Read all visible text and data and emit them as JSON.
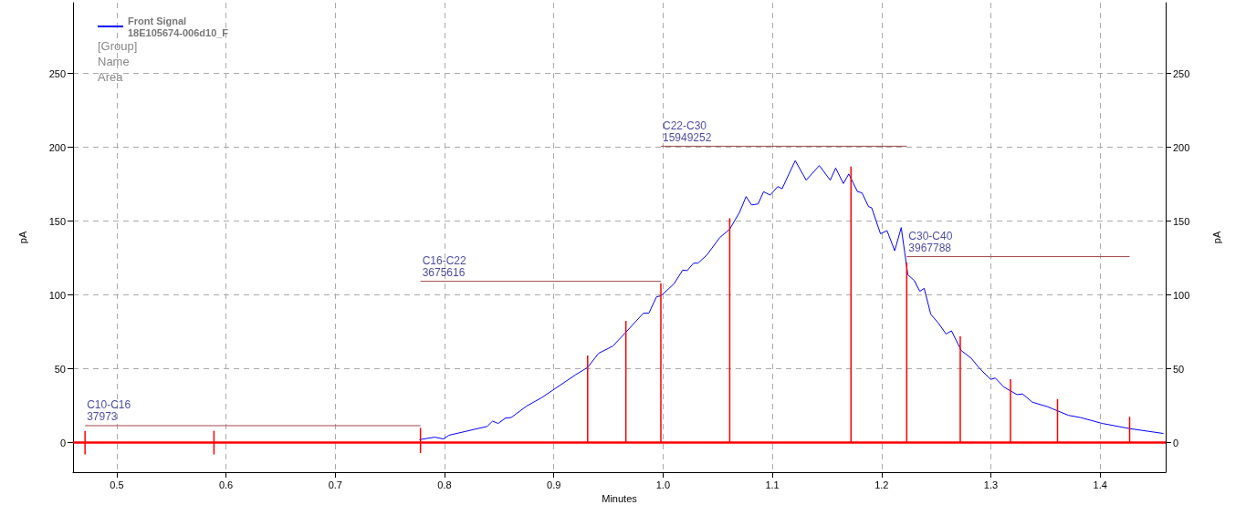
{
  "chart_data": {
    "type": "line",
    "xlabel": "Minutes",
    "ylabel": "pA",
    "y2label": "pA",
    "xlim": [
      0.46,
      1.46
    ],
    "xticks": [
      0.5,
      0.6,
      0.7,
      0.8,
      0.9,
      {
        "value": 1,
        "label": "1.0"
      },
      1.1,
      1.2,
      1.3,
      1.4
    ],
    "ylim": [
      -20,
      298
    ],
    "yticks": [
      0,
      50,
      100,
      150,
      200,
      250
    ],
    "y2lim": [
      -20,
      298
    ],
    "y2ticks": [
      0,
      50,
      100,
      150,
      200,
      250
    ],
    "grid": true,
    "legend": "top left",
    "marker": "none",
    "series": [
      {
        "name": "Front Signal\n18E105674-006d10_F",
        "color": "#0000ff",
        "x": [
          0.777,
          0.791,
          0.799,
          0.804,
          0.839,
          0.844,
          0.849,
          0.856,
          0.861,
          0.875,
          0.889,
          0.902,
          0.912,
          0.92,
          0.931,
          0.941,
          0.954,
          0.965,
          0.982,
          0.987,
          0.994,
          0.998,
          1.01,
          1.018,
          1.022,
          1.028,
          1.032,
          1.04,
          1.052,
          1.061,
          1.07,
          1.076,
          1.081,
          1.087,
          1.092,
          1.098,
          1.105,
          1.109,
          1.115,
          1.121,
          1.131,
          1.143,
          1.153,
          1.158,
          1.165,
          1.17,
          1.178,
          1.182,
          1.188,
          1.191,
          1.199,
          1.205,
          1.212,
          1.218,
          1.224,
          1.23,
          1.235,
          1.239,
          1.245,
          1.252,
          1.259,
          1.264,
          1.273,
          1.282,
          1.29,
          1.3,
          1.304,
          1.312,
          1.324,
          1.329,
          1.338,
          1.352,
          1.371,
          1.382,
          1.402,
          1.427,
          1.458
        ],
        "values": [
          2,
          3.7,
          2.5,
          5,
          11,
          14.6,
          13,
          16.7,
          17,
          24.7,
          30.5,
          37,
          42,
          46,
          51,
          60.5,
          65.4,
          74,
          87.7,
          87.7,
          98.8,
          99.4,
          107.6,
          116.9,
          116.5,
          121.6,
          121.6,
          127,
          139,
          144.6,
          156,
          166.7,
          161,
          161.7,
          170,
          167.7,
          173.5,
          172,
          181.7,
          191,
          177.8,
          187.7,
          177.8,
          186,
          175.5,
          182,
          170,
          169.3,
          160,
          159,
          141.5,
          143.6,
          130,
          145.7,
          113.8,
          109.7,
          102.5,
          104.5,
          87,
          80.9,
          73.6,
          75.7,
          62.3,
          57.2,
          50,
          42.8,
          43.8,
          37.6,
          32.5,
          33,
          27.4,
          24.3,
          18.5,
          17,
          13,
          9.5,
          6.2
        ]
      },
      {
        "type": "bar",
        "color": "#ff0000",
        "x": [
          0.471,
          0.589,
          0.778,
          0.931,
          0.966,
          0.998,
          1.061,
          1.172,
          1.223,
          1.272,
          1.318,
          1.361,
          1.427
        ],
        "base": [
          -8,
          -8,
          -7,
          0,
          0,
          0,
          0,
          0,
          0,
          0,
          0,
          0,
          0
        ],
        "values": [
          16,
          16,
          17,
          59,
          82.5,
          108,
          152,
          187,
          122,
          72,
          43,
          29.5,
          17.5
        ]
      },
      {
        "color": "#a04848",
        "x": [
          0.471,
          0.778
        ],
        "values": [
          11.5,
          11.5
        ]
      },
      {
        "color": "#a04848",
        "x": [
          0.778,
          0.998
        ],
        "values": [
          109.3,
          109.3
        ]
      },
      {
        "color": "#a04848",
        "x": [
          0.998,
          1.223
        ],
        "values": [
          200.8,
          200.8
        ]
      },
      {
        "color": "#a04848",
        "x": [
          1.223,
          1.427
        ],
        "values": [
          126,
          126
        ]
      }
    ],
    "ref_lines": [
      {
        "axis": "y",
        "value": 0,
        "color": "#ff0000"
      }
    ],
    "annotations": [
      "[Group]",
      "Name",
      "Area",
      {
        "text": "C10-C16\n37973",
        "x": 0.471,
        "y": 11.5
      },
      {
        "text": "C16-C22\n3675616",
        "x": 0.778,
        "y": 109.3
      },
      {
        "text": "C22-C30\n15949252",
        "x": 0.998,
        "y": 200.8
      },
      {
        "text": "C30-C40\n3967788",
        "x": 1.223,
        "y": 126
      }
    ]
  }
}
